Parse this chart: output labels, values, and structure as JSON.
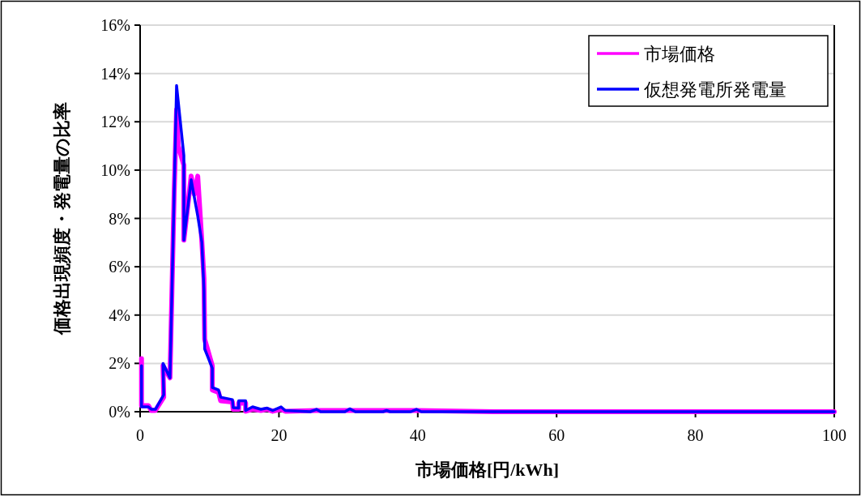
{
  "chart_data": {
    "type": "line",
    "xlabel": "市場価格[円/kWh]",
    "ylabel": "価格出現頻度・発電量の比率",
    "xlim": [
      0,
      100
    ],
    "xticks": [
      0,
      20,
      40,
      60,
      80,
      100
    ],
    "ylim": [
      0,
      16
    ],
    "yticks": [
      {
        "value": 0,
        "label": "0%"
      },
      {
        "value": 2,
        "label": "2%"
      },
      {
        "value": 4,
        "label": "4%"
      },
      {
        "value": 6,
        "label": "6%"
      },
      {
        "value": 8,
        "label": "8%"
      },
      {
        "value": 10,
        "label": "10%"
      },
      {
        "value": 12,
        "label": "12%"
      },
      {
        "value": 14,
        "label": "14%"
      },
      {
        "value": 16,
        "label": "16%"
      }
    ],
    "grid": "y",
    "legend": "top right",
    "marker": "none",
    "line_style": "solid",
    "series": [
      {
        "name": "市場価格",
        "color": "#ff00ff",
        "x": [
          0.2,
          0.2,
          1.2,
          1.6,
          2.2,
          3.4,
          3.3,
          4.3,
          4.9,
          5.25,
          5.5,
          6.3,
          6.3,
          7.35,
          7.8,
          8.3,
          8.9,
          9.2,
          9.3,
          10.4,
          10.4,
          11.3,
          11.6,
          13.3,
          13.4,
          14.2,
          14.2,
          15.2,
          15.2,
          16.2,
          17.4,
          18.3,
          19.1,
          20.3,
          20.9,
          25.4,
          30.2,
          35.5,
          39.8,
          51,
          100
        ],
        "values": [
          2.2,
          0.25,
          0.25,
          0.05,
          0.05,
          0.6,
          1.9,
          1.4,
          9.0,
          12.5,
          11.0,
          10.2,
          7.1,
          9.75,
          9.0,
          9.75,
          7.0,
          5.5,
          3.0,
          1.9,
          0.9,
          0.8,
          0.45,
          0.4,
          0.1,
          0.1,
          0.35,
          0.35,
          0.02,
          0.1,
          0.05,
          0.1,
          0.02,
          0.1,
          0.02,
          0.05,
          0.05,
          0.05,
          0.05,
          0.0,
          0.0
        ]
      },
      {
        "name": "仮想発電所発電量",
        "color": "#0000ff",
        "x": [
          0.2,
          0.2,
          1.2,
          1.6,
          2.2,
          3.4,
          3.3,
          4.3,
          4.9,
          5.25,
          6.3,
          6.3,
          7.35,
          8.3,
          8.9,
          9.2,
          9.3,
          10.4,
          10.4,
          11.3,
          11.6,
          13.3,
          13.4,
          14.2,
          14.2,
          15.2,
          15.2,
          16.2,
          17.4,
          18.3,
          19.1,
          20.3,
          20.9,
          24.5,
          25.4,
          26,
          29.5,
          30.2,
          31,
          35,
          35.5,
          36,
          39,
          39.8,
          40.5,
          51,
          100
        ],
        "values": [
          1.9,
          0.2,
          0.2,
          0.1,
          0.1,
          0.7,
          2.0,
          1.4,
          9.0,
          13.5,
          10.6,
          7.1,
          9.6,
          8.1,
          7.0,
          5.0,
          2.6,
          1.8,
          1.0,
          0.9,
          0.6,
          0.5,
          0.17,
          0.15,
          0.45,
          0.45,
          0.05,
          0.2,
          0.1,
          0.15,
          0.05,
          0.2,
          0.05,
          0.0,
          0.1,
          0.0,
          0.0,
          0.12,
          0.0,
          0.0,
          0.05,
          0.0,
          0.0,
          0.1,
          0.0,
          0.0,
          0.0
        ]
      }
    ]
  }
}
